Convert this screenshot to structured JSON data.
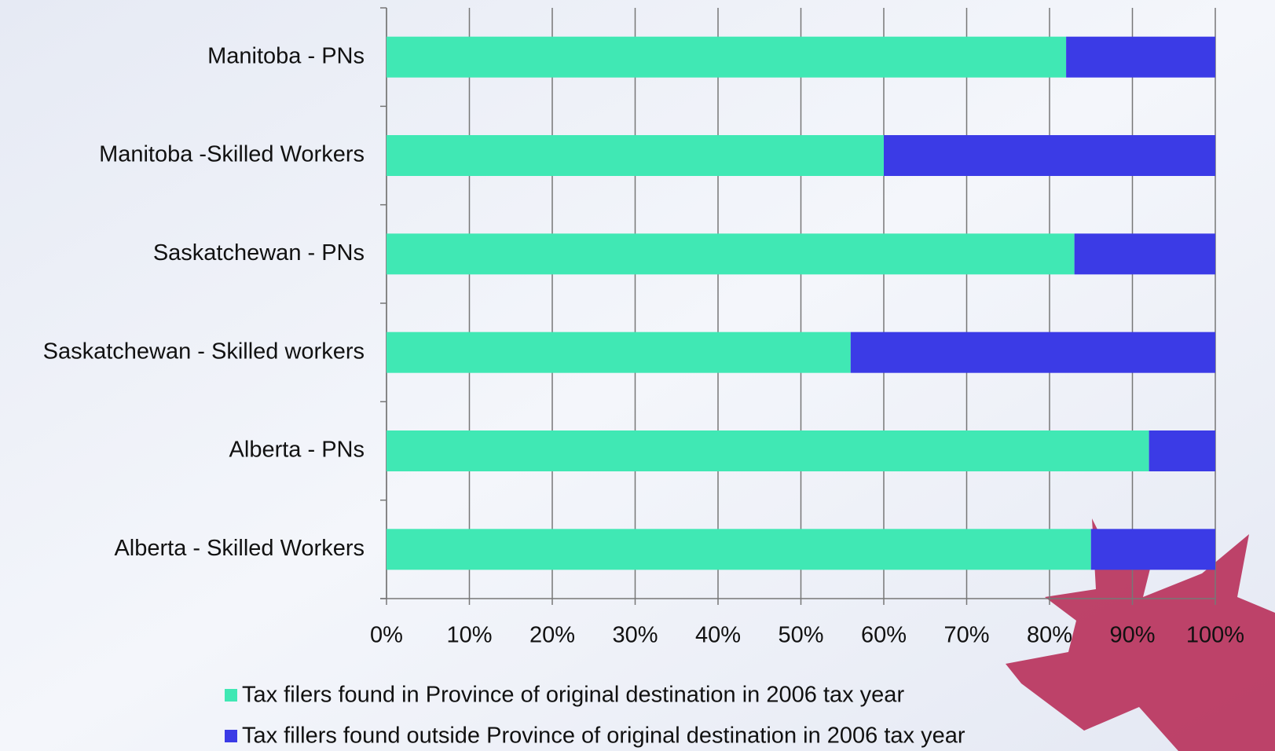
{
  "chart_data": {
    "type": "stacked_bar_horizontal",
    "categories": [
      "Manitoba - PNs",
      "Manitoba -Skilled Workers",
      "Saskatchewan - PNs",
      "Saskatchewan - Skilled workers",
      "Alberta - PNs",
      "Alberta - Skilled Workers"
    ],
    "series": [
      {
        "name": "Tax filers found in Province of original destination in 2006 tax year",
        "color": "#40e8b4",
        "values": [
          82,
          60,
          83,
          56,
          92,
          85
        ]
      },
      {
        "name": "Tax fillers found outside Province of original destination in 2006 tax year",
        "color": "#3b3be6",
        "values": [
          18,
          40,
          17,
          44,
          8,
          15
        ]
      }
    ],
    "xlim": [
      0,
      100
    ],
    "xticks": [
      {
        "value": 0,
        "label": "0%"
      },
      {
        "value": 10,
        "label": "10%"
      },
      {
        "value": 20,
        "label": "20%"
      },
      {
        "value": 30,
        "label": "30%"
      },
      {
        "value": 40,
        "label": "40%"
      },
      {
        "value": 50,
        "label": "50%"
      },
      {
        "value": 60,
        "label": "60%"
      },
      {
        "value": 70,
        "label": "70%"
      },
      {
        "value": 80,
        "label": "80%"
      },
      {
        "value": 90,
        "label": "90%"
      },
      {
        "value": 100,
        "label": "100%"
      }
    ],
    "grid": true
  }
}
